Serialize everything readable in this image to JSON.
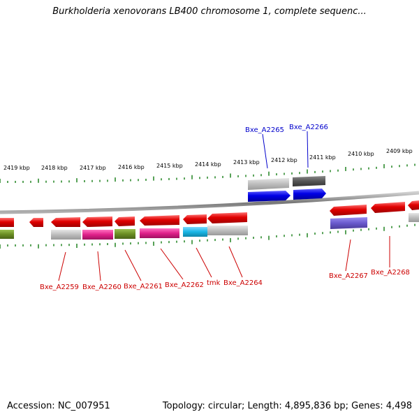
{
  "title": "Burkholderia xenovorans LB400 chromosome 1, complete sequenc...",
  "footer": {
    "accession": "Accession: NC_007951",
    "summary": "Topology: circular; Length: 4,895,836 bp; Genes: 4,498"
  },
  "ticks": [
    "2419 kbp",
    "2418 kbp",
    "2417 kbp",
    "2416 kbp",
    "2415 kbp",
    "2414 kbp",
    "2413 kbp",
    "2412 kbp",
    "2411 kbp",
    "2410 kbp",
    "2409 kbp"
  ],
  "gene_labels": {
    "Bxe_A2265": "Bxe_A2265",
    "Bxe_A2266": "Bxe_A2266",
    "Bxe_A2259": "Bxe_A2259",
    "Bxe_A2260": "Bxe_A2260",
    "Bxe_A2261": "Bxe_A2261",
    "Bxe_A2262": "Bxe_A2262",
    "tmk": "tmk",
    "Bxe_A2264": "Bxe_A2264",
    "Bxe_A2267": "Bxe_A2267",
    "Bxe_A2268": "Bxe_A2268"
  },
  "colors": {
    "forward_label": "#0000cc",
    "reverse_label": "#cc0000",
    "tick": "#2e8b2e",
    "backbone": "#888888",
    "red": "#e00000",
    "blue": "#0000e6",
    "gray": "#bdbdbd",
    "darkgray": "#555555",
    "magenta": "#e0208a",
    "olive": "#6b8e23",
    "cyan": "#19b6e6",
    "purple": "#6a5acd"
  }
}
